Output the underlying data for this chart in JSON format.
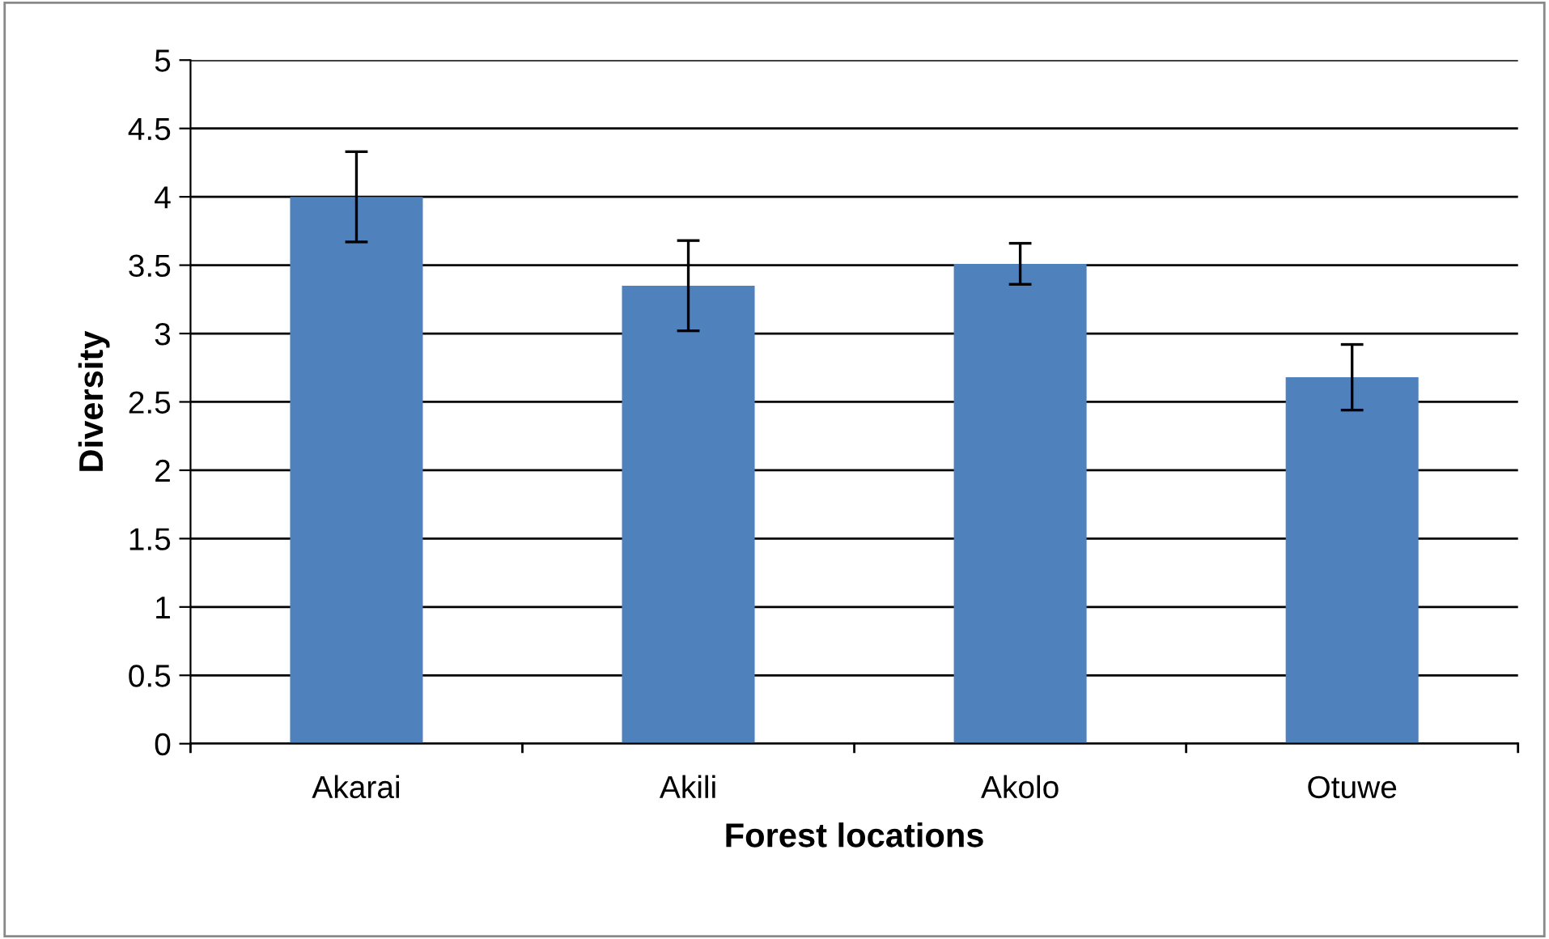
{
  "chart_data": {
    "type": "bar",
    "xlabel": "Forest locations",
    "ylabel": "Diversity",
    "categories": [
      "Akarai",
      "Akili",
      "Akolo",
      "Otuwe"
    ],
    "values": [
      4.0,
      3.35,
      3.51,
      2.68
    ],
    "errors": [
      0.33,
      0.33,
      0.15,
      0.24
    ],
    "color": "#4f81bd",
    "ylim": [
      0,
      5
    ],
    "yticks": [
      0,
      0.5,
      1,
      1.5,
      2,
      2.5,
      3,
      3.5,
      4,
      4.5,
      5
    ],
    "grid": "y",
    "legend": false
  }
}
